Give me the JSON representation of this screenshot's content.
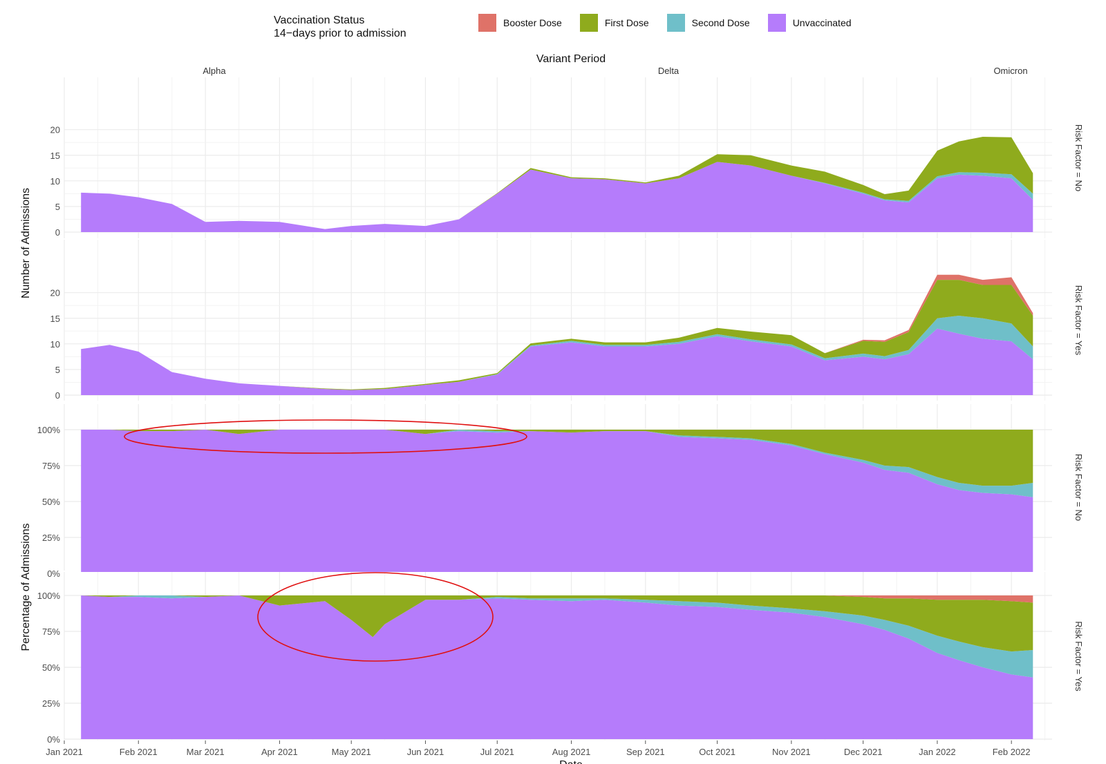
{
  "legend": {
    "title_line1": "Vaccination Status",
    "title_line2": "14−days prior to admission",
    "items": [
      {
        "label": "Booster Dose",
        "color": "#df7268"
      },
      {
        "label": "First Dose",
        "color": "#8fab1d"
      },
      {
        "label": "Second Dose",
        "color": "#6fbfc9"
      },
      {
        "label": "Unvaccinated",
        "color": "#b57cfb"
      }
    ]
  },
  "chart_data": {
    "type": "area",
    "stacked": true,
    "column_title": "Variant Period",
    "columns": [
      "Alpha",
      "Delta",
      "Omicron"
    ],
    "xlabel": "Date",
    "x_ticks": [
      "Jan 2021",
      "Feb 2021",
      "Mar 2021",
      "Apr 2021",
      "May 2021",
      "Jun 2021",
      "Jul 2021",
      "Aug 2021",
      "Sep 2021",
      "Oct 2021",
      "Nov 2021",
      "Dec 2021",
      "Jan 2022",
      "Feb 2022"
    ],
    "x_range": [
      "2021-01-01",
      "2022-02-18"
    ],
    "ylabel_top": "Number of Admissions",
    "ylabel_bottom": "Percentage of Admissions",
    "count_ticks": [
      "0",
      "5",
      "10",
      "15",
      "20"
    ],
    "pct_ticks": [
      "0%",
      "25%",
      "50%",
      "75%",
      "100%"
    ],
    "annotations": [
      "red ellipse highlighting first-dose admissions Feb-Jun 2021 (Risk Factor = No)",
      "red ellipse highlighting first-dose admissions Apr-Jun 2021 (Risk Factor = Yes)"
    ],
    "panels": [
      {
        "label": "Risk Factor = No",
        "measure": "count",
        "ylim": [
          0,
          24
        ],
        "x": [
          "2021-01-08",
          "2021-01-20",
          "2021-02-01",
          "2021-02-15",
          "2021-03-01",
          "2021-03-15",
          "2021-04-01",
          "2021-04-20",
          "2021-05-01",
          "2021-05-15",
          "2021-06-01",
          "2021-06-15",
          "2021-07-01",
          "2021-07-15",
          "2021-08-01",
          "2021-08-15",
          "2021-09-01",
          "2021-09-15",
          "2021-10-01",
          "2021-10-15",
          "2021-11-01",
          "2021-11-15",
          "2021-12-01",
          "2021-12-10",
          "2021-12-20",
          "2022-01-01",
          "2022-01-10",
          "2022-01-20",
          "2022-02-01",
          "2022-02-10"
        ],
        "series": [
          {
            "name": "Unvaccinated",
            "values": [
              7.7,
              7.5,
              6.8,
              5.5,
              2.0,
              2.2,
              2.0,
              0.6,
              1.2,
              1.6,
              1.2,
              2.5,
              7.5,
              12.2,
              10.5,
              10.3,
              9.5,
              10.5,
              13.7,
              13.0,
              11.0,
              9.5,
              7.5,
              6.2,
              5.8,
              10.5,
              11.2,
              11.0,
              10.5,
              6.3
            ]
          },
          {
            "name": "Second Dose",
            "values": [
              0,
              0,
              0,
              0,
              0,
              0,
              0,
              0,
              0,
              0,
              0,
              0,
              0,
              0,
              0,
              0,
              0,
              0,
              0,
              0,
              0,
              0.1,
              0.2,
              0.2,
              0.3,
              0.4,
              0.5,
              0.6,
              0.8,
              1.2
            ]
          },
          {
            "name": "First Dose",
            "values": [
              0,
              0,
              0,
              0,
              0,
              0,
              0,
              0,
              0,
              0,
              0,
              0,
              0.1,
              0.3,
              0.2,
              0.2,
              0.2,
              0.5,
              1.5,
              2.0,
              2.0,
              2.2,
              1.5,
              1.0,
              2.0,
              5.0,
              6.0,
              7.0,
              7.2,
              4.0
            ]
          },
          {
            "name": "Booster Dose",
            "values": [
              0,
              0,
              0,
              0,
              0,
              0,
              0,
              0,
              0,
              0,
              0,
              0,
              0,
              0,
              0,
              0,
              0,
              0,
              0,
              0,
              0,
              0,
              0,
              0,
              0,
              0,
              0,
              0,
              0,
              0
            ]
          }
        ]
      },
      {
        "label": "Risk Factor = Yes",
        "measure": "count",
        "ylim": [
          0,
          24
        ],
        "x": [
          "2021-01-08",
          "2021-01-20",
          "2021-02-01",
          "2021-02-15",
          "2021-03-01",
          "2021-03-15",
          "2021-04-01",
          "2021-04-20",
          "2021-05-01",
          "2021-05-15",
          "2021-06-01",
          "2021-06-15",
          "2021-07-01",
          "2021-07-15",
          "2021-08-01",
          "2021-08-15",
          "2021-09-01",
          "2021-09-15",
          "2021-10-01",
          "2021-10-15",
          "2021-11-01",
          "2021-11-15",
          "2021-12-01",
          "2021-12-10",
          "2021-12-20",
          "2022-01-01",
          "2022-01-10",
          "2022-01-20",
          "2022-02-01",
          "2022-02-10"
        ],
        "series": [
          {
            "name": "Unvaccinated",
            "values": [
              9.0,
              9.8,
              8.5,
              4.5,
              3.2,
              2.3,
              1.8,
              1.2,
              1.0,
              1.2,
              2.0,
              2.6,
              4.0,
              9.5,
              10.3,
              9.5,
              9.5,
              10.0,
              11.5,
              10.5,
              9.5,
              6.8,
              7.5,
              7.0,
              8.0,
              13.0,
              12.0,
              11.0,
              10.5,
              7.0
            ]
          },
          {
            "name": "Second Dose",
            "values": [
              0,
              0,
              0,
              0,
              0,
              0,
              0,
              0,
              0,
              0,
              0,
              0,
              0.1,
              0.2,
              0.3,
              0.3,
              0.3,
              0.4,
              0.4,
              0.4,
              0.4,
              0.4,
              0.6,
              0.6,
              0.8,
              2.0,
              3.5,
              4.0,
              3.5,
              2.5
            ]
          },
          {
            "name": "First Dose",
            "values": [
              0,
              0,
              0,
              0,
              0,
              0,
              0,
              0.1,
              0.1,
              0.2,
              0.2,
              0.3,
              0.2,
              0.4,
              0.4,
              0.5,
              0.5,
              0.8,
              1.2,
              1.5,
              1.8,
              1.0,
              2.5,
              2.8,
              3.5,
              7.5,
              7.0,
              6.5,
              7.5,
              6.0
            ]
          },
          {
            "name": "Booster Dose",
            "values": [
              0,
              0,
              0,
              0,
              0,
              0,
              0,
              0,
              0,
              0,
              0,
              0,
              0,
              0,
              0,
              0,
              0,
              0,
              0,
              0,
              0,
              0,
              0.2,
              0.3,
              0.4,
              1.0,
              1.0,
              1.0,
              1.5,
              0.5
            ]
          }
        ]
      },
      {
        "label": "Risk Factor = No",
        "measure": "percent",
        "ylim": [
          0,
          100
        ],
        "x": [
          "2021-01-08",
          "2021-01-20",
          "2021-02-01",
          "2021-02-15",
          "2021-03-01",
          "2021-03-15",
          "2021-04-01",
          "2021-04-20",
          "2021-05-01",
          "2021-05-15",
          "2021-06-01",
          "2021-06-15",
          "2021-07-01",
          "2021-07-15",
          "2021-08-01",
          "2021-08-15",
          "2021-09-01",
          "2021-09-15",
          "2021-10-01",
          "2021-10-15",
          "2021-11-01",
          "2021-11-15",
          "2021-12-01",
          "2021-12-10",
          "2021-12-20",
          "2022-01-01",
          "2022-01-10",
          "2022-01-20",
          "2022-02-01",
          "2022-02-10"
        ],
        "series": [
          {
            "name": "Unvaccinated",
            "values": [
              100,
              100,
              99,
              99,
              100,
              97,
              100,
              100,
              100,
              100,
              97,
              99,
              98,
              99,
              98,
              99,
              99,
              95,
              94,
              93,
              89,
              83,
              77,
              72,
              70,
              62,
              58,
              56,
              55,
              53
            ]
          },
          {
            "name": "Second Dose",
            "values": [
              0,
              0,
              0,
              0,
              0,
              0,
              0,
              0,
              0,
              0,
              0,
              1,
              1,
              0,
              0,
              0,
              0,
              1,
              1,
              1,
              1,
              1,
              2,
              3,
              4,
              5,
              5,
              5,
              6,
              10
            ]
          },
          {
            "name": "First Dose",
            "values": [
              0,
              0,
              1,
              1,
              0,
              3,
              0,
              0,
              0,
              0,
              3,
              0,
              1,
              1,
              2,
              1,
              1,
              4,
              5,
              6,
              10,
              16,
              21,
              25,
              26,
              33,
              37,
              39,
              39,
              37
            ]
          },
          {
            "name": "Booster Dose",
            "values": [
              0,
              0,
              0,
              0,
              0,
              0,
              0,
              0,
              0,
              0,
              0,
              0,
              0,
              0,
              0,
              0,
              0,
              0,
              0,
              0,
              0,
              0,
              0,
              0,
              0,
              0,
              0,
              0,
              0,
              0
            ]
          }
        ]
      },
      {
        "label": "Risk Factor = Yes",
        "measure": "percent",
        "ylim": [
          0,
          100
        ],
        "x": [
          "2021-01-08",
          "2021-01-20",
          "2021-02-01",
          "2021-02-15",
          "2021-03-01",
          "2021-03-15",
          "2021-04-01",
          "2021-04-20",
          "2021-05-01",
          "2021-05-10",
          "2021-05-15",
          "2021-06-01",
          "2021-06-15",
          "2021-07-01",
          "2021-07-15",
          "2021-08-01",
          "2021-08-15",
          "2021-09-01",
          "2021-09-15",
          "2021-10-01",
          "2021-10-15",
          "2021-11-01",
          "2021-11-15",
          "2021-12-01",
          "2021-12-10",
          "2021-12-20",
          "2022-01-01",
          "2022-01-10",
          "2022-01-20",
          "2022-02-01",
          "2022-02-10"
        ],
        "series": [
          {
            "name": "Unvaccinated",
            "values": [
              100,
              99,
              99,
              98,
              99,
              100,
              93,
              96,
              83,
              71,
              80,
              97,
              97,
              98,
              97,
              96,
              97,
              95,
              93,
              92,
              90,
              88,
              85,
              80,
              76,
              70,
              60,
              55,
              50,
              45,
              43
            ]
          },
          {
            "name": "Second Dose",
            "values": [
              0,
              0,
              1,
              2,
              0,
              0,
              0,
              0,
              0,
              0,
              0,
              0,
              0,
              1,
              1,
              2,
              1,
              2,
              3,
              3,
              3,
              3,
              4,
              6,
              7,
              9,
              12,
              13,
              14,
              16,
              19
            ]
          },
          {
            "name": "First Dose",
            "values": [
              0,
              1,
              0,
              0,
              1,
              0,
              7,
              4,
              17,
              29,
              20,
              3,
              3,
              1,
              2,
              2,
              2,
              3,
              4,
              5,
              7,
              9,
              11,
              13,
              15,
              19,
              25,
              29,
              33,
              35,
              33
            ]
          },
          {
            "name": "Booster Dose",
            "values": [
              0,
              0,
              0,
              0,
              0,
              0,
              0,
              0,
              0,
              0,
              0,
              0,
              0,
              0,
              0,
              0,
              0,
              0,
              0,
              0,
              0,
              0,
              0,
              1,
              2,
              2,
              3,
              3,
              3,
              4,
              5
            ]
          }
        ]
      }
    ]
  }
}
